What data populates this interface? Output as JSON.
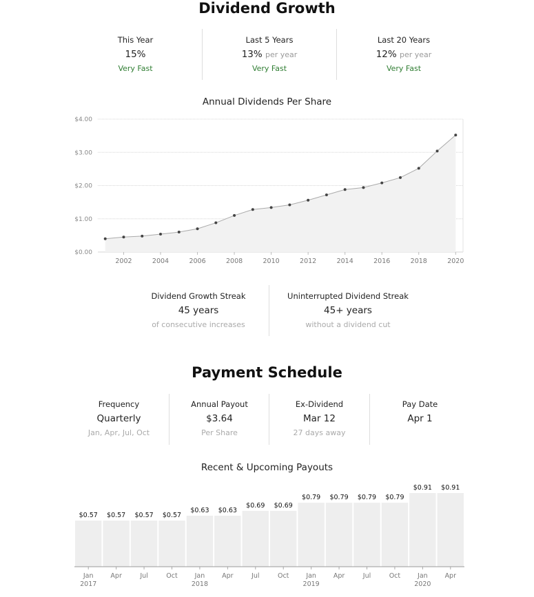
{
  "dividend_growth": {
    "title": "Dividend Growth",
    "stats": [
      {
        "label": "This Year",
        "value": "15%",
        "unit": "",
        "rating": "Very Fast"
      },
      {
        "label": "Last 5 Years",
        "value": "13%",
        "unit": "per year",
        "rating": "Very Fast"
      },
      {
        "label": "Last 20 Years",
        "value": "12%",
        "unit": "per year",
        "rating": "Very Fast"
      }
    ],
    "chart_title": "Annual Dividends Per Share",
    "streaks": [
      {
        "label": "Dividend Growth Streak",
        "value": "45 years",
        "sub": "of consecutive increases"
      },
      {
        "label": "Uninterrupted Dividend Streak",
        "value": "45+ years",
        "sub": "without a dividend cut"
      }
    ]
  },
  "payment_schedule": {
    "title": "Payment Schedule",
    "stats": [
      {
        "label": "Frequency",
        "value": "Quarterly",
        "sub": "Jan, Apr, Jul, Oct"
      },
      {
        "label": "Annual Payout",
        "value": "$3.64",
        "sub": "Per Share"
      },
      {
        "label": "Ex-Dividend",
        "value": "Mar 12",
        "sub": "27 days away"
      },
      {
        "label": "Pay Date",
        "value": "Apr 1",
        "sub": ""
      }
    ],
    "chart_title": "Recent & Upcoming Payouts"
  },
  "colors": {
    "accent_green": "#2f7d32",
    "area_fill": "#f2f2f2",
    "bar_fill": "#eeeeee",
    "line": "#aaaaaa"
  },
  "chart_data": [
    {
      "type": "area",
      "title": "Annual Dividends Per Share",
      "x": [
        2001,
        2002,
        2003,
        2004,
        2005,
        2006,
        2007,
        2008,
        2009,
        2010,
        2011,
        2012,
        2013,
        2014,
        2015,
        2016,
        2017,
        2018,
        2019,
        2020
      ],
      "values": [
        0.4,
        0.45,
        0.48,
        0.54,
        0.6,
        0.7,
        0.88,
        1.1,
        1.28,
        1.34,
        1.42,
        1.56,
        1.72,
        1.88,
        1.94,
        2.08,
        2.24,
        2.52,
        3.04,
        3.52
      ],
      "ylim": [
        0,
        4
      ],
      "yticks": [
        0,
        1,
        2,
        3,
        4
      ],
      "ytick_labels": [
        "$0.00",
        "$1.00",
        "$2.00",
        "$3.00",
        "$4.00"
      ],
      "xticks": [
        2002,
        2004,
        2006,
        2008,
        2010,
        2012,
        2014,
        2016,
        2018,
        2020
      ],
      "xtick_labels": [
        "2002",
        "2004",
        "2006",
        "2008",
        "2010",
        "2012",
        "2014",
        "2016",
        "2018",
        "2020"
      ],
      "grid": true,
      "xlabel": "",
      "ylabel": ""
    },
    {
      "type": "bar",
      "title": "Recent & Upcoming Payouts",
      "categories": [
        "Jan",
        "Apr",
        "Jul",
        "Oct",
        "Jan",
        "Apr",
        "Jul",
        "Oct",
        "Jan",
        "Apr",
        "Jul",
        "Oct",
        "Jan",
        "Apr"
      ],
      "years": [
        "2017",
        "",
        "",
        "",
        "2018",
        "",
        "",
        "",
        "2019",
        "",
        "",
        "",
        "2020",
        ""
      ],
      "values": [
        0.57,
        0.57,
        0.57,
        0.57,
        0.63,
        0.63,
        0.69,
        0.69,
        0.79,
        0.79,
        0.79,
        0.79,
        0.91,
        0.91
      ],
      "value_labels": [
        "$0.57",
        "$0.57",
        "$0.57",
        "$0.57",
        "$0.63",
        "$0.63",
        "$0.69",
        "$0.69",
        "$0.79",
        "$0.79",
        "$0.79",
        "$0.79",
        "$0.91",
        "$0.91"
      ],
      "xlabel": "",
      "ylabel": ""
    }
  ]
}
